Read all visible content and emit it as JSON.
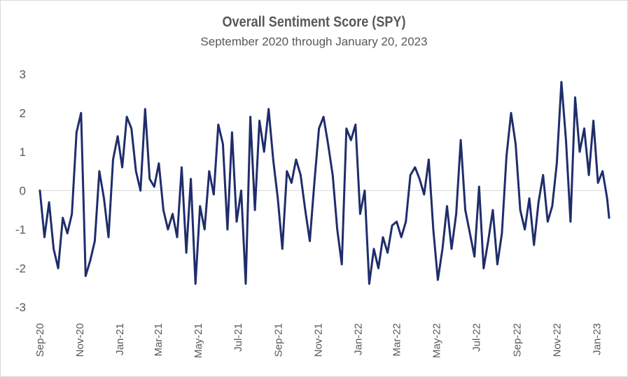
{
  "chart_data": {
    "type": "line",
    "title": "Overall Sentiment Score (SPY)",
    "subtitle": "September 2020 through January 20, 2023",
    "xlabel": "",
    "ylabel": "",
    "ylim": [
      -3,
      3
    ],
    "y_ticks": [
      "3",
      "2",
      "1",
      "0",
      "-1",
      "-2",
      "-3"
    ],
    "x_ticks": [
      "Sep-20",
      "Nov-20",
      "Jan-21",
      "Mar-21",
      "May-21",
      "Jul-21",
      "Sep-21",
      "Nov-21",
      "Jan-22",
      "Mar-22",
      "May-22",
      "Jul-22",
      "Sep-22",
      "Nov-22",
      "Jan-23"
    ],
    "x_range_months": [
      "2020-09",
      "2023-01-20"
    ],
    "grid": false,
    "zero_line": true,
    "series": [
      {
        "color": "#1f2d6b",
        "x": [
          "2020-09-01",
          "2020-09-08",
          "2020-09-15",
          "2020-09-22",
          "2020-09-29",
          "2020-10-06",
          "2020-10-13",
          "2020-10-20",
          "2020-10-27",
          "2020-11-03",
          "2020-11-10",
          "2020-11-17",
          "2020-11-24",
          "2020-12-01",
          "2020-12-08",
          "2020-12-15",
          "2020-12-22",
          "2020-12-29",
          "2021-01-05",
          "2021-01-12",
          "2021-01-19",
          "2021-01-26",
          "2021-02-02",
          "2021-02-09",
          "2021-02-16",
          "2021-02-23",
          "2021-03-02",
          "2021-03-09",
          "2021-03-16",
          "2021-03-23",
          "2021-03-30",
          "2021-04-06",
          "2021-04-13",
          "2021-04-20",
          "2021-04-27",
          "2021-05-04",
          "2021-05-11",
          "2021-05-18",
          "2021-05-25",
          "2021-06-01",
          "2021-06-08",
          "2021-06-15",
          "2021-06-22",
          "2021-06-29",
          "2021-07-06",
          "2021-07-13",
          "2021-07-20",
          "2021-07-27",
          "2021-08-03",
          "2021-08-10",
          "2021-08-17",
          "2021-08-24",
          "2021-08-31",
          "2021-09-07",
          "2021-09-14",
          "2021-09-21",
          "2021-09-28",
          "2021-10-05",
          "2021-10-12",
          "2021-10-19",
          "2021-10-26",
          "2021-11-02",
          "2021-11-09",
          "2021-11-16",
          "2021-11-23",
          "2021-11-30",
          "2021-12-07",
          "2021-12-14",
          "2021-12-21",
          "2021-12-28",
          "2022-01-04",
          "2022-01-11",
          "2022-01-18",
          "2022-01-25",
          "2022-02-01",
          "2022-02-08",
          "2022-02-15",
          "2022-02-22",
          "2022-03-01",
          "2022-03-08",
          "2022-03-15",
          "2022-03-22",
          "2022-03-29",
          "2022-04-05",
          "2022-04-12",
          "2022-04-19",
          "2022-04-26",
          "2022-05-03",
          "2022-05-10",
          "2022-05-17",
          "2022-05-24",
          "2022-05-31",
          "2022-06-07",
          "2022-06-14",
          "2022-06-21",
          "2022-06-28",
          "2022-07-05",
          "2022-07-12",
          "2022-07-19",
          "2022-07-26",
          "2022-08-02",
          "2022-08-09",
          "2022-08-16",
          "2022-08-23",
          "2022-08-30",
          "2022-09-06",
          "2022-09-13",
          "2022-09-20",
          "2022-09-27",
          "2022-10-04",
          "2022-10-11",
          "2022-10-18",
          "2022-10-25",
          "2022-11-01",
          "2022-11-08",
          "2022-11-15",
          "2022-11-22",
          "2022-11-29",
          "2022-12-06",
          "2022-12-13",
          "2022-12-20",
          "2022-12-27",
          "2023-01-03",
          "2023-01-10",
          "2023-01-17",
          "2023-01-20"
        ],
        "values": [
          0.0,
          -1.2,
          -0.3,
          -1.5,
          -2.0,
          -0.7,
          -1.1,
          -0.6,
          1.5,
          2.0,
          -2.2,
          -1.8,
          -1.3,
          0.5,
          -0.2,
          -1.2,
          0.8,
          1.4,
          0.6,
          1.9,
          1.6,
          0.5,
          0.0,
          2.1,
          0.3,
          0.1,
          0.7,
          -0.5,
          -1.0,
          -0.6,
          -1.2,
          0.6,
          -1.6,
          0.3,
          -2.4,
          -0.4,
          -1.0,
          0.5,
          -0.1,
          1.7,
          1.2,
          -1.0,
          1.5,
          -0.8,
          0.0,
          -2.4,
          1.9,
          -0.5,
          1.8,
          1.0,
          2.1,
          0.8,
          -0.2,
          -1.5,
          0.5,
          0.2,
          0.8,
          0.4,
          -0.5,
          -1.3,
          0.2,
          1.6,
          1.9,
          1.2,
          0.4,
          -1.0,
          -1.9,
          1.6,
          1.3,
          1.7,
          -0.6,
          0.0,
          -2.4,
          -1.5,
          -2.0,
          -1.2,
          -1.6,
          -0.9,
          -0.8,
          -1.2,
          -0.8,
          0.4,
          0.6,
          0.3,
          -0.1,
          0.8,
          -1.0,
          -2.3,
          -1.5,
          -0.4,
          -1.5,
          -0.6,
          1.3,
          -0.5,
          -1.1,
          -1.7,
          0.1,
          -2.0,
          -1.3,
          -0.5,
          -1.9,
          -1.1,
          0.9,
          2.0,
          1.2,
          -0.5,
          -1.0,
          -0.2,
          -1.4,
          -0.3,
          0.4,
          -0.8,
          -0.4,
          0.7,
          2.8,
          1.3,
          -0.8,
          2.4,
          1.0,
          1.6,
          0.4,
          1.8,
          0.2,
          0.5,
          -0.2,
          -0.7
        ]
      }
    ]
  }
}
